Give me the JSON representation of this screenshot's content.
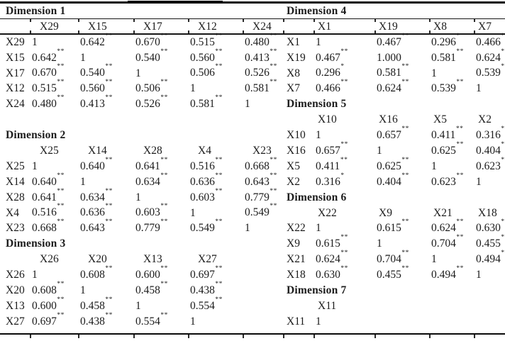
{
  "page": {
    "background_color": "#ffffff",
    "text_color": "#1b1b1b",
    "line_color": "#0a0a0a",
    "description": "Scanned journal table of per-dimension Pearson correlation matrices with significance stars"
  },
  "table": {
    "halves": [
      {
        "side": "left",
        "blocks": [
          {
            "title": "Dimension 1",
            "columns": [
              "X29",
              "X15",
              "X17",
              "X12",
              "X24"
            ],
            "rows": [
              {
                "label": "X29",
                "values": [
                  "1",
                  "0.642**",
                  "0.670**",
                  "0.515**",
                  "0.480**"
                ]
              },
              {
                "label": "X15",
                "values": [
                  "0.642**",
                  "1",
                  "0.540**",
                  "0.560**",
                  "0.413**"
                ]
              },
              {
                "label": "X17",
                "values": [
                  "0.670**",
                  "0.540**",
                  "1",
                  "0.506**",
                  "0.526**"
                ]
              },
              {
                "label": "X12",
                "values": [
                  "0.515**",
                  "0.560**",
                  "0.506**",
                  "1",
                  "0.581**"
                ]
              },
              {
                "label": "X24",
                "values": [
                  "0.480**",
                  "0.413**",
                  "0.526**",
                  "0.581**",
                  "1"
                ]
              }
            ],
            "blank_row_after": true
          },
          {
            "title": "Dimension 2",
            "columns": [
              "X25",
              "X14",
              "X28",
              "X4",
              "X23"
            ],
            "rows": [
              {
                "label": "X25",
                "values": [
                  "1",
                  "0.640**",
                  "0.641**",
                  "0.516**",
                  "0.668**"
                ]
              },
              {
                "label": "X14",
                "values": [
                  "0.640**",
                  "1",
                  "0.634**",
                  "0.636**",
                  "0.643**"
                ]
              },
              {
                "label": "X28",
                "values": [
                  "0.641**",
                  "0.634**",
                  "1",
                  "0.603**",
                  "0.779**"
                ]
              },
              {
                "label": "X4",
                "values": [
                  "0.516**",
                  "0.636**",
                  "0.603**",
                  "1",
                  "0.549**"
                ]
              },
              {
                "label": "X23",
                "values": [
                  "0.668**",
                  "0.643**",
                  "0.779**",
                  "0.549**",
                  "1"
                ]
              }
            ],
            "blank_row_after": false
          },
          {
            "title": "Dimension 3",
            "columns": [
              "X26",
              "X20",
              "X13",
              "X27"
            ],
            "rows": [
              {
                "label": "X26",
                "values": [
                  "1",
                  "0.608**",
                  "0.600**",
                  "0.697**"
                ]
              },
              {
                "label": "X20",
                "values": [
                  "0.608**",
                  "1",
                  "0.458**",
                  "0.438**"
                ]
              },
              {
                "label": "X13",
                "values": [
                  "0.600**",
                  "0.458**",
                  "1",
                  "0.554**"
                ]
              },
              {
                "label": "X27",
                "values": [
                  "0.697**",
                  "0.438**",
                  "0.554**",
                  "1"
                ]
              }
            ],
            "blank_row_after": false
          }
        ]
      },
      {
        "side": "right",
        "blocks": [
          {
            "title": "Dimension 4",
            "columns": [
              "X1",
              "X19",
              "X8",
              "X7"
            ],
            "rows": [
              {
                "label": "X1",
                "values": [
                  "1",
                  "0.467**",
                  "0.296*",
                  "0.466**"
                ]
              },
              {
                "label": "X19",
                "values": [
                  "0.467**",
                  "1.000",
                  "0.581**",
                  "0.624**"
                ]
              },
              {
                "label": "X8",
                "values": [
                  "0.296*",
                  "0.581**",
                  "1",
                  "0.539**"
                ]
              },
              {
                "label": "X7",
                "values": [
                  "0.466**",
                  "0.624**",
                  "0.539**",
                  "1"
                ]
              }
            ],
            "blank_row_after": false
          },
          {
            "title": "Dimension 5",
            "columns": [
              "X10",
              "X16",
              "X5",
              "X2"
            ],
            "rows": [
              {
                "label": "X10",
                "values": [
                  "1",
                  "0.657**",
                  "0.411**",
                  "0.316*"
                ]
              },
              {
                "label": "X16",
                "values": [
                  "0.657**",
                  "1",
                  "0.625**",
                  "0.404**"
                ]
              },
              {
                "label": "X5",
                "values": [
                  "0.411**",
                  "0.625**",
                  "1",
                  "0.623**"
                ]
              },
              {
                "label": "X2",
                "values": [
                  "0.316*",
                  "0.404**",
                  "0.623**",
                  "1"
                ]
              }
            ],
            "blank_row_after": false
          },
          {
            "title": "Dimension 6",
            "columns": [
              "X22",
              "X9",
              "X21",
              "X18"
            ],
            "rows": [
              {
                "label": "X22",
                "values": [
                  "1",
                  "0.615**",
                  "0.624**",
                  "0.630**"
                ]
              },
              {
                "label": "X9",
                "values": [
                  "0.615**",
                  "1",
                  "0.704**",
                  "0.455**"
                ]
              },
              {
                "label": "X21",
                "values": [
                  "0.624**",
                  "0.704**",
                  "1",
                  "0.494**"
                ]
              },
              {
                "label": "X18",
                "values": [
                  "0.630**",
                  "0.455**",
                  "0.494**",
                  "1"
                ]
              }
            ],
            "blank_row_after": false
          },
          {
            "title": "Dimension 7",
            "columns": [
              "X11"
            ],
            "rows": [
              {
                "label": "X11",
                "values": [
                  "1"
                ]
              }
            ],
            "blank_row_after": false
          }
        ]
      }
    ]
  }
}
